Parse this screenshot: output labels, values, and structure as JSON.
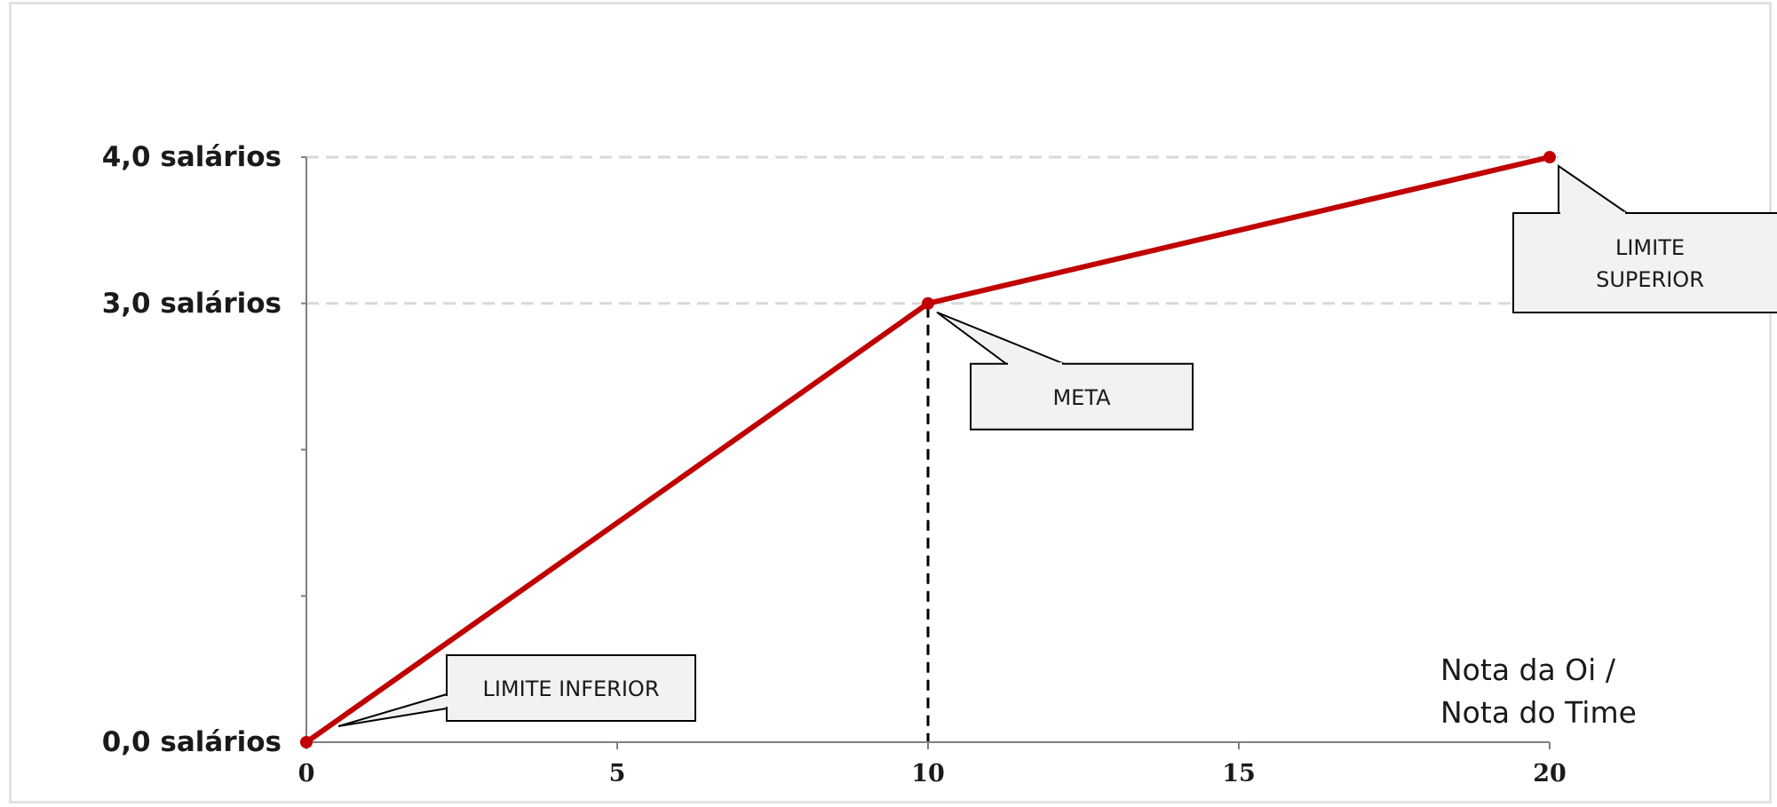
{
  "chart_data": {
    "type": "line",
    "x": [
      0,
      10,
      20
    ],
    "series": [
      {
        "values": [
          0,
          3,
          4
        ],
        "color": "#c00000"
      }
    ],
    "xlim": [
      0,
      20
    ],
    "ylim": [
      0,
      4
    ],
    "x_ticks": [
      0,
      5,
      10,
      15,
      20
    ],
    "y_tick_labels": [
      {
        "value": 4,
        "label": "4,0 salários"
      },
      {
        "value": 3,
        "label": "3,0 salários"
      },
      {
        "value": 0,
        "label": "0,0 salários"
      }
    ],
    "xlabel_lines": [
      "Nota da Oi /",
      "Nota do Time"
    ],
    "reference_lines": [
      {
        "axis": "y",
        "value": 4,
        "style": "dashed",
        "color": "#d9d9d9"
      },
      {
        "axis": "y",
        "value": 3,
        "style": "dashed",
        "color": "#d9d9d9"
      },
      {
        "axis": "x",
        "value": 10,
        "style": "dashed",
        "color": "#000000"
      }
    ],
    "annotations": [
      {
        "name": "limite-inferior",
        "lines": [
          "LIMITE INFERIOR"
        ],
        "x": 0,
        "y": 0
      },
      {
        "name": "meta",
        "lines": [
          "META"
        ],
        "x": 10,
        "y": 3
      },
      {
        "name": "limite-superior",
        "lines": [
          "LIMITE",
          "SUPERIOR"
        ],
        "x": 20,
        "y": 4
      }
    ],
    "colors": {
      "line": "#c00000",
      "axis": "#7f7f7f",
      "callout_fill": "#f2f2f2",
      "callout_border": "#000000"
    }
  }
}
